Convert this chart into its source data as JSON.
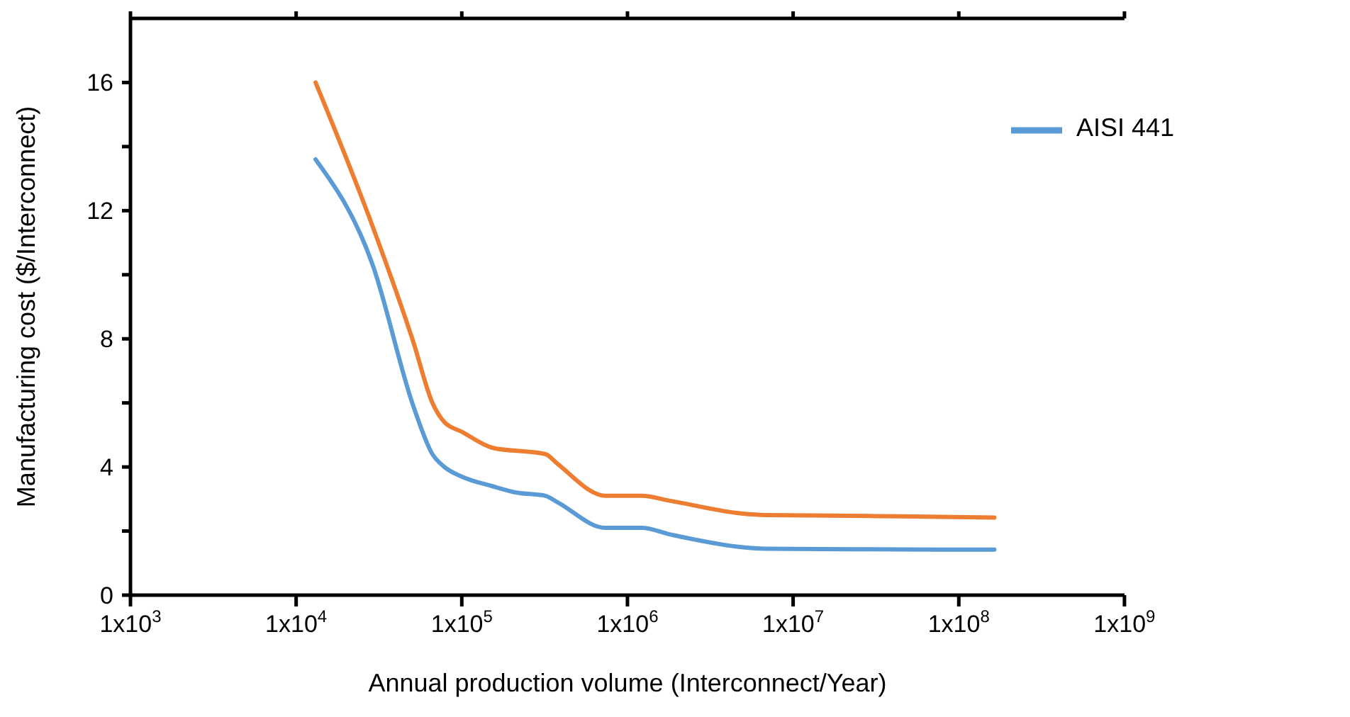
{
  "chart_data": {
    "type": "line",
    "xlabel": "Annual production volume (Interconnect/Year)",
    "ylabel": "Manufacturing cost ($/Interconnect)",
    "log": "x",
    "xlim": [
      1000,
      1000000000
    ],
    "ylim": [
      0,
      18
    ],
    "xticks": [
      {
        "value": 1000,
        "label": "1x10$^{3}$"
      },
      {
        "value": 10000,
        "label": "1x10$^{4}$"
      },
      {
        "value": 100000,
        "label": "1x10$^{5}$"
      },
      {
        "value": 1000000,
        "label": "1x10$^{6}$"
      },
      {
        "value": 10000000,
        "label": "1x10$^{7}$"
      },
      {
        "value": 100000000,
        "label": "1x10$^{8}$"
      },
      {
        "value": 1000000000,
        "label": "1x10$^{9}$"
      }
    ],
    "yticks": [
      0,
      {
        "value": 2,
        "label": null
      },
      4,
      {
        "value": 6,
        "label": null
      },
      8,
      {
        "value": 10,
        "label": null
      },
      12,
      {
        "value": 14,
        "label": null
      },
      16
    ],
    "legend": "top right",
    "marker": "none",
    "line_style": "solid",
    "series": [
      {
        "name": "AISI 441",
        "color": "#5b9bd5",
        "x": [
          13100,
          29000,
          51000,
          66500,
          78500,
          100000,
          153000,
          214000,
          320000,
          378000,
          738000,
          1220000,
          1790000,
          4880000,
          6800000,
          29000000,
          164000000
        ],
        "values": [
          13.6,
          10.3,
          5.9,
          4.4,
          4.0,
          3.7,
          3.4,
          3.2,
          3.1,
          2.9,
          2.1,
          2.1,
          1.9,
          1.5,
          1.45,
          1.43,
          1.42
        ]
      },
      {
        "color": "#ed7d31",
        "x": [
          13100,
          29000,
          51000,
          66500,
          78500,
          100000,
          153000,
          320000,
          378000,
          738000,
          1220000,
          1790000,
          4880000,
          6800000,
          29000000,
          164000000
        ],
        "values": [
          16.0,
          11.5,
          7.9,
          6.0,
          5.4,
          5.1,
          4.6,
          4.4,
          4.1,
          3.1,
          3.1,
          2.95,
          2.55,
          2.5,
          2.47,
          2.42
        ]
      }
    ]
  }
}
